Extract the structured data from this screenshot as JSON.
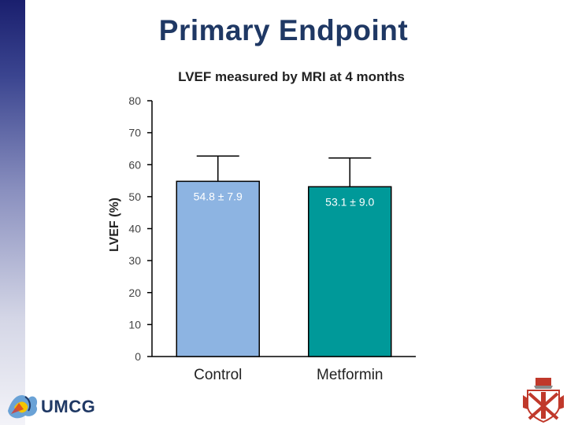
{
  "page": {
    "title": "Primary Endpoint",
    "logo_text": "UMCG"
  },
  "colors": {
    "title": "#1f3864",
    "control_bar": "#8db4e2",
    "metformin_bar": "#009999",
    "axis": "#000000"
  },
  "chart_data": {
    "type": "bar",
    "title": "LVEF measured by MRI at 4 months",
    "xlabel": "",
    "ylabel": "LVEF (%)",
    "ylim": [
      0,
      80
    ],
    "yticks": [
      0,
      10,
      20,
      30,
      40,
      50,
      60,
      70,
      80
    ],
    "categories": [
      "Control",
      "Metformin"
    ],
    "values": [
      54.8,
      53.1
    ],
    "errors": [
      7.9,
      9.0
    ],
    "data_labels": [
      "54.8 ± 7.9",
      "53.1 ± 9.0"
    ],
    "bar_colors": [
      "#8db4e2",
      "#009999"
    ],
    "label_colors": [
      "#ffffff",
      "#ffffff"
    ],
    "grid": false
  }
}
